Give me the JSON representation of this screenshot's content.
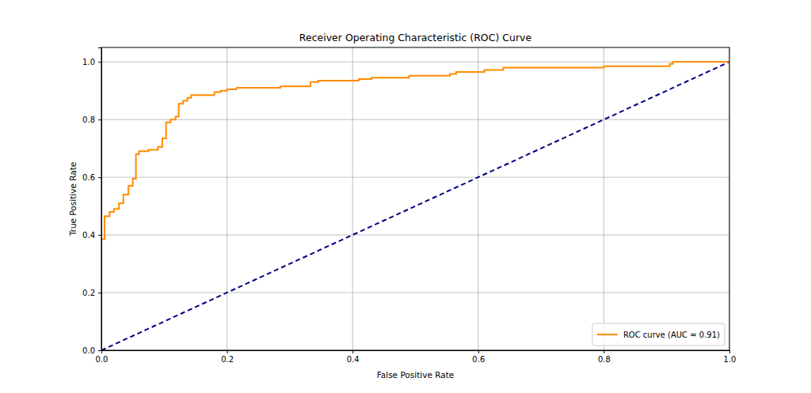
{
  "chart_data": {
    "type": "line",
    "title": "Receiver Operating Characteristic (ROC) Curve",
    "x_label": "False Positive Rate",
    "y_label": "True Positive Rate",
    "xlim": [
      0,
      1
    ],
    "ylim": [
      0,
      1.05
    ],
    "xticks": [
      {
        "value": 0,
        "label": "0.0"
      },
      0.2,
      0.4,
      0.6,
      0.8,
      {
        "value": 1,
        "label": "1.0"
      }
    ],
    "yticks": [
      {
        "value": 0,
        "label": "0.0"
      },
      0.2,
      0.4,
      0.6,
      0.8,
      {
        "value": 1,
        "label": "1.0"
      }
    ],
    "grid": true,
    "legend": "lower right",
    "series": [
      {
        "name": "ROC curve (AUC = 0.91)",
        "color": "#ff8c00",
        "line_style": "solid",
        "x": [
          0,
          0,
          0.005,
          0.005,
          0.013,
          0.013,
          0.02,
          0.02,
          0.028,
          0.028,
          0.035,
          0.035,
          0.043,
          0.043,
          0.05,
          0.05,
          0.055,
          0.055,
          0.06,
          0.06,
          0.075,
          0.075,
          0.09,
          0.09,
          0.097,
          0.097,
          0.103,
          0.103,
          0.11,
          0.11,
          0.118,
          0.118,
          0.123,
          0.123,
          0.13,
          0.13,
          0.137,
          0.137,
          0.143,
          0.143,
          0.18,
          0.18,
          0.19,
          0.19,
          0.2,
          0.2,
          0.215,
          0.215,
          0.285,
          0.285,
          0.333,
          0.333,
          0.345,
          0.345,
          0.41,
          0.41,
          0.43,
          0.43,
          0.49,
          0.49,
          0.555,
          0.555,
          0.565,
          0.565,
          0.61,
          0.61,
          0.64,
          0.64,
          0.8,
          0.8,
          0.905,
          0.905,
          0.91,
          0.91,
          1.0
        ],
        "values": [
          0,
          0.385,
          0.385,
          0.465,
          0.465,
          0.48,
          0.48,
          0.49,
          0.49,
          0.51,
          0.51,
          0.54,
          0.54,
          0.57,
          0.57,
          0.595,
          0.595,
          0.68,
          0.68,
          0.69,
          0.69,
          0.695,
          0.695,
          0.705,
          0.705,
          0.735,
          0.735,
          0.79,
          0.79,
          0.8,
          0.8,
          0.81,
          0.81,
          0.855,
          0.855,
          0.865,
          0.865,
          0.875,
          0.875,
          0.885,
          0.885,
          0.895,
          0.895,
          0.9,
          0.9,
          0.905,
          0.905,
          0.91,
          0.91,
          0.915,
          0.915,
          0.93,
          0.93,
          0.935,
          0.935,
          0.94,
          0.94,
          0.945,
          0.945,
          0.952,
          0.952,
          0.958,
          0.958,
          0.965,
          0.965,
          0.972,
          0.972,
          0.98,
          0.98,
          0.985,
          0.985,
          0.993,
          0.993,
          1.0,
          1.0
        ]
      },
      {
        "color": "#000080",
        "line_style": "dashed",
        "x": [
          0,
          1
        ],
        "values": [
          0,
          1
        ]
      }
    ]
  }
}
